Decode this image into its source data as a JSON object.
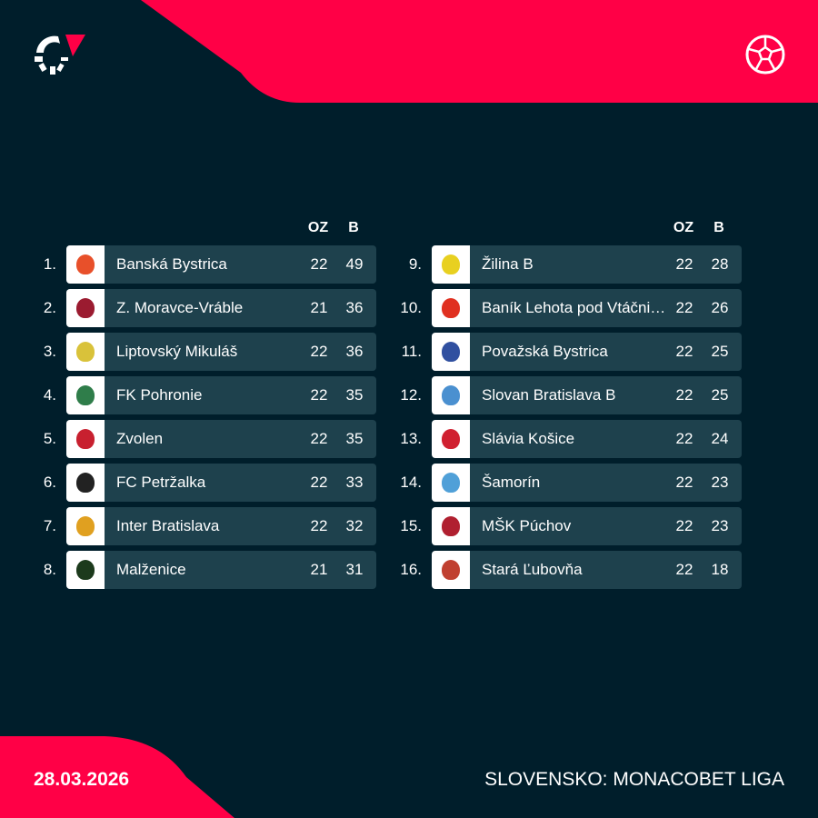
{
  "header": {
    "logo_icon": "flashscore-logo-icon",
    "sport_icon": "football-icon"
  },
  "colors": {
    "background": "#001e2b",
    "accent": "#ff0046",
    "row": "#1e414d"
  },
  "columns": {
    "played": "OZ",
    "points": "B"
  },
  "table_left": [
    {
      "rank": "1.",
      "team": "Banská Bystrica",
      "played": "22",
      "points": "49",
      "crest": "#e8502a"
    },
    {
      "rank": "2.",
      "team": "Z. Moravce-Vráble",
      "played": "21",
      "points": "36",
      "crest": "#9b1b30"
    },
    {
      "rank": "3.",
      "team": "Liptovský Mikuláš",
      "played": "22",
      "points": "36",
      "crest": "#d9c23a"
    },
    {
      "rank": "4.",
      "team": "FK Pohronie",
      "played": "22",
      "points": "35",
      "crest": "#2f7d4a"
    },
    {
      "rank": "5.",
      "team": "Zvolen",
      "played": "22",
      "points": "35",
      "crest": "#c8202f"
    },
    {
      "rank": "6.",
      "team": "FC Petržalka",
      "played": "22",
      "points": "33",
      "crest": "#222222"
    },
    {
      "rank": "7.",
      "team": "Inter Bratislava",
      "played": "22",
      "points": "32",
      "crest": "#e0a020"
    },
    {
      "rank": "8.",
      "team": "Malženice",
      "played": "21",
      "points": "31",
      "crest": "#1c3a1c"
    }
  ],
  "table_right": [
    {
      "rank": "9.",
      "team": "Žilina B",
      "played": "22",
      "points": "28",
      "crest": "#e8d020"
    },
    {
      "rank": "10.",
      "team": "Baník Lehota pod Vtáčnikom",
      "played": "22",
      "points": "26",
      "crest": "#e03020"
    },
    {
      "rank": "11.",
      "team": "Považská Bystrica",
      "played": "22",
      "points": "25",
      "crest": "#3050a0"
    },
    {
      "rank": "12.",
      "team": "Slovan Bratislava B",
      "played": "22",
      "points": "25",
      "crest": "#4a90d0"
    },
    {
      "rank": "13.",
      "team": "Slávia Košice",
      "played": "22",
      "points": "24",
      "crest": "#d02030"
    },
    {
      "rank": "14.",
      "team": "Šamorín",
      "played": "22",
      "points": "23",
      "crest": "#50a0d8"
    },
    {
      "rank": "15.",
      "team": "MŠK Púchov",
      "played": "22",
      "points": "23",
      "crest": "#b02030"
    },
    {
      "rank": "16.",
      "team": "Stará Ľubovňa",
      "played": "22",
      "points": "18",
      "crest": "#c04030"
    }
  ],
  "footer": {
    "date": "28.03.2026",
    "league": "SLOVENSKO: MONACOBET LIGA"
  }
}
